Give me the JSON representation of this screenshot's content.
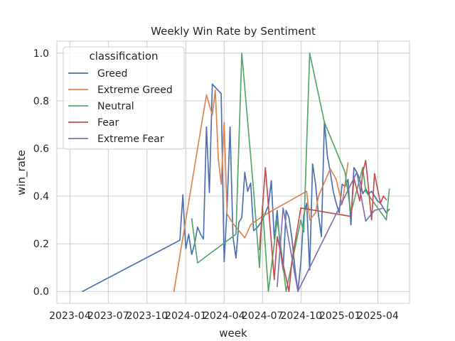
{
  "chart_data": {
    "type": "line",
    "title": "Weekly Win Rate by Sentiment",
    "xlabel": "week",
    "ylabel": "win_rate",
    "x_type": "date",
    "xlim": [
      "2023-03-01",
      "2025-06-15"
    ],
    "ylim": [
      -0.05,
      1.05
    ],
    "xticks": [
      {
        "date": "2023-04-01",
        "label": "2023-04"
      },
      {
        "date": "2023-07-01",
        "label": "2023-07"
      },
      {
        "date": "2023-10-01",
        "label": "2023-10"
      },
      {
        "date": "2024-01-01",
        "label": "2024-01"
      },
      {
        "date": "2024-04-01",
        "label": "2024-04"
      },
      {
        "date": "2024-07-01",
        "label": "2024-07"
      },
      {
        "date": "2024-10-01",
        "label": "2024-10"
      },
      {
        "date": "2025-01-01",
        "label": "2025-01"
      },
      {
        "date": "2025-04-01",
        "label": "2025-04"
      }
    ],
    "yticks": [
      0.0,
      0.2,
      0.4,
      0.6,
      0.8,
      1.0
    ],
    "ytick_labels": [
      "0.0",
      "0.2",
      "0.4",
      "0.6",
      "0.8",
      "1.0"
    ],
    "grid": true,
    "legend_title": "classification",
    "legend_position": "upper-left",
    "series": [
      {
        "name": "Greed",
        "color": "#4c72b0",
        "points": [
          [
            "2023-05-01",
            0.0
          ],
          [
            "2023-12-18",
            0.215
          ],
          [
            "2023-12-25",
            0.405
          ],
          [
            "2024-01-01",
            0.18
          ],
          [
            "2024-01-08",
            0.24
          ],
          [
            "2024-01-15",
            0.155
          ],
          [
            "2024-01-22",
            0.2
          ],
          [
            "2024-01-29",
            0.27
          ],
          [
            "2024-02-05",
            0.24
          ],
          [
            "2024-02-12",
            0.22
          ],
          [
            "2024-02-19",
            0.69
          ],
          [
            "2024-02-26",
            0.415
          ],
          [
            "2024-03-04",
            0.87
          ],
          [
            "2024-03-25",
            0.83
          ],
          [
            "2024-04-01",
            0.125
          ],
          [
            "2024-04-08",
            0.35
          ],
          [
            "2024-04-15",
            0.69
          ],
          [
            "2024-04-22",
            0.23
          ],
          [
            "2024-04-29",
            0.14
          ],
          [
            "2024-05-06",
            0.29
          ],
          [
            "2024-05-13",
            0.31
          ],
          [
            "2024-05-20",
            0.5
          ],
          [
            "2024-05-27",
            0.42
          ],
          [
            "2024-06-03",
            0.455
          ],
          [
            "2024-06-10",
            0.255
          ],
          [
            "2024-06-17",
            0.265
          ],
          [
            "2024-06-24",
            0.28
          ],
          [
            "2024-07-01",
            0.3
          ],
          [
            "2024-07-15",
            0.36
          ],
          [
            "2024-07-22",
            0.465
          ],
          [
            "2024-07-29",
            0.22
          ],
          [
            "2024-08-05",
            0.34
          ],
          [
            "2024-08-12",
            0.18
          ],
          [
            "2024-08-19",
            0.09
          ],
          [
            "2024-08-26",
            0.34
          ],
          [
            "2024-09-02",
            0.31
          ],
          [
            "2024-09-09",
            0.22
          ],
          [
            "2024-09-16",
            0.1
          ],
          [
            "2024-09-23",
            0.0
          ],
          [
            "2024-09-30",
            0.12
          ],
          [
            "2024-10-07",
            0.32
          ],
          [
            "2024-10-14",
            0.37
          ],
          [
            "2024-10-21",
            0.09
          ],
          [
            "2024-10-28",
            0.535
          ],
          [
            "2024-11-04",
            0.45
          ],
          [
            "2024-11-11",
            0.32
          ],
          [
            "2024-11-18",
            0.23
          ],
          [
            "2024-11-25",
            0.715
          ],
          [
            "2024-12-02",
            0.57
          ],
          [
            "2024-12-09",
            0.5
          ],
          [
            "2024-12-16",
            0.42
          ],
          [
            "2024-12-23",
            0.37
          ],
          [
            "2024-12-30",
            0.33
          ],
          [
            "2025-01-06",
            0.45
          ],
          [
            "2025-01-13",
            0.44
          ],
          [
            "2025-01-20",
            0.47
          ],
          [
            "2025-01-27",
            0.28
          ],
          [
            "2025-02-03",
            0.52
          ],
          [
            "2025-02-10",
            0.5
          ],
          [
            "2025-02-17",
            0.47
          ],
          [
            "2025-02-24",
            0.41
          ],
          [
            "2025-03-03",
            0.43
          ],
          [
            "2025-03-10",
            0.41
          ],
          [
            "2025-03-17",
            0.42
          ],
          [
            "2025-03-24",
            0.4
          ],
          [
            "2025-03-31",
            0.38
          ],
          [
            "2025-04-07",
            0.37
          ],
          [
            "2025-04-21",
            0.33
          ],
          [
            "2025-04-28",
            0.345
          ]
        ]
      },
      {
        "name": "Extreme Greed",
        "color": "#dd8452",
        "points": [
          [
            "2023-12-04",
            0.0
          ],
          [
            "2024-02-19",
            0.825
          ],
          [
            "2024-03-04",
            0.74
          ],
          [
            "2024-03-11",
            0.845
          ],
          [
            "2024-03-18",
            0.56
          ],
          [
            "2024-03-25",
            0.45
          ],
          [
            "2024-04-01",
            0.71
          ],
          [
            "2024-04-08",
            0.325
          ],
          [
            "2024-04-22",
            0.285
          ],
          [
            "2024-05-20",
            0.225
          ],
          [
            "2024-06-03",
            0.28
          ],
          [
            "2024-07-01",
            0.315
          ],
          [
            "2024-07-15",
            0.33
          ],
          [
            "2024-10-14",
            0.42
          ],
          [
            "2024-10-21",
            0.3
          ],
          [
            "2024-11-04",
            0.33
          ],
          [
            "2024-11-11",
            0.4
          ],
          [
            "2024-12-09",
            0.515
          ],
          [
            "2024-12-23",
            0.47
          ],
          [
            "2025-01-06",
            0.365
          ],
          [
            "2025-01-13",
            0.45
          ],
          [
            "2025-01-20",
            0.54
          ]
        ]
      },
      {
        "name": "Neutral",
        "color": "#55a868",
        "points": [
          [
            "2024-01-15",
            0.305
          ],
          [
            "2024-01-29",
            0.12
          ],
          [
            "2024-04-29",
            0.24
          ],
          [
            "2024-05-13",
            1.0
          ],
          [
            "2024-06-10",
            0.425
          ],
          [
            "2024-06-24",
            0.1
          ],
          [
            "2024-07-01",
            0.36
          ],
          [
            "2024-07-15",
            0.0
          ],
          [
            "2024-08-05",
            0.3
          ],
          [
            "2024-08-12",
            0.21
          ],
          [
            "2024-08-26",
            0.0
          ],
          [
            "2024-09-30",
            0.3
          ],
          [
            "2024-10-07",
            0.25
          ],
          [
            "2024-10-21",
            1.0
          ],
          [
            "2024-11-25",
            0.71
          ],
          [
            "2025-01-13",
            0.5
          ],
          [
            "2025-01-27",
            0.33
          ],
          [
            "2025-02-24",
            0.52
          ],
          [
            "2025-03-03",
            0.42
          ],
          [
            "2025-04-21",
            0.3
          ],
          [
            "2025-04-28",
            0.43
          ]
        ]
      },
      {
        "name": "Fear",
        "color": "#c44e52",
        "points": [
          [
            "2024-06-24",
            0.175
          ],
          [
            "2024-07-08",
            0.52
          ],
          [
            "2024-07-29",
            0.05
          ],
          [
            "2024-08-05",
            0.23
          ],
          [
            "2024-09-02",
            0.0
          ],
          [
            "2024-09-09",
            0.13
          ],
          [
            "2024-09-30",
            0.35
          ],
          [
            "2025-01-27",
            0.315
          ],
          [
            "2025-02-03",
            0.475
          ],
          [
            "2025-02-17",
            0.38
          ],
          [
            "2025-02-24",
            0.5
          ],
          [
            "2025-03-03",
            0.55
          ],
          [
            "2025-03-17",
            0.3
          ],
          [
            "2025-03-24",
            0.495
          ],
          [
            "2025-04-07",
            0.37
          ],
          [
            "2025-04-14",
            0.4
          ],
          [
            "2025-04-21",
            0.385
          ]
        ]
      },
      {
        "name": "Extreme Fear",
        "color": "#8172b3",
        "points": [
          [
            "2024-08-05",
            0.02
          ],
          [
            "2024-08-19",
            0.35
          ],
          [
            "2024-09-23",
            0.0
          ],
          [
            "2025-02-10",
            0.5
          ],
          [
            "2025-03-03",
            0.295
          ],
          [
            "2025-03-24",
            0.34
          ],
          [
            "2025-04-14",
            0.35
          ]
        ]
      }
    ]
  }
}
